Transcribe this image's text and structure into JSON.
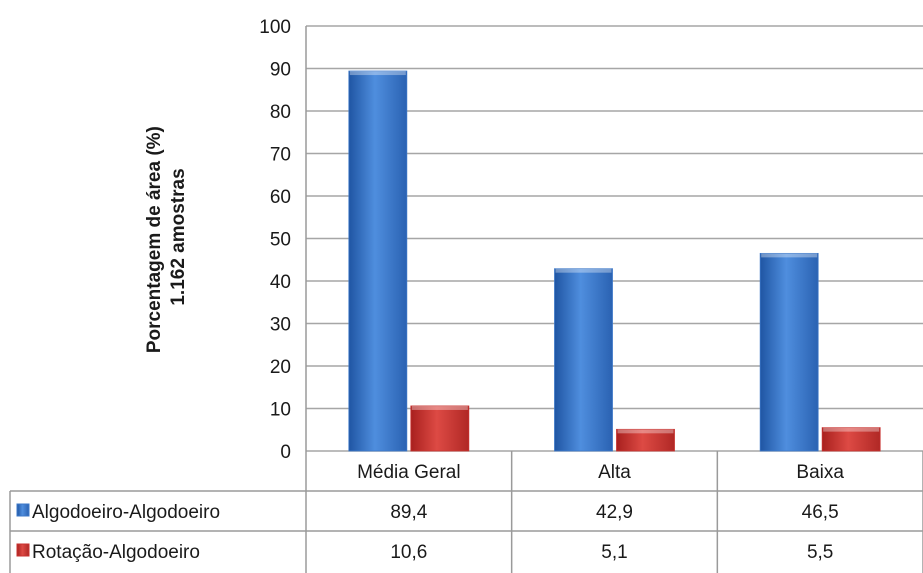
{
  "chart_data": {
    "type": "bar",
    "title": "",
    "xlabel": "",
    "ylabel": "Porcentagem de área (%)",
    "ylabel_line2": "1.162 amostras",
    "ylim": [
      0,
      100
    ],
    "yticks": [
      0,
      10,
      20,
      30,
      40,
      50,
      60,
      70,
      80,
      90,
      100
    ],
    "categories": [
      "Média Geral",
      "Alta",
      "Baixa"
    ],
    "series": [
      {
        "name": "Algodoeiro-Algodoeiro",
        "color": "#3d78c8",
        "values": [
          89.4,
          42.9,
          46.5
        ],
        "labels": [
          "89,4",
          "42,9",
          "46,5"
        ]
      },
      {
        "name": "Rotação-Algodoeiro",
        "color": "#c8322f",
        "values": [
          10.6,
          5.1,
          5.5
        ],
        "labels": [
          "10,6",
          "5,1",
          "5,5"
        ]
      }
    ],
    "grid": true,
    "legend": "data-table"
  }
}
